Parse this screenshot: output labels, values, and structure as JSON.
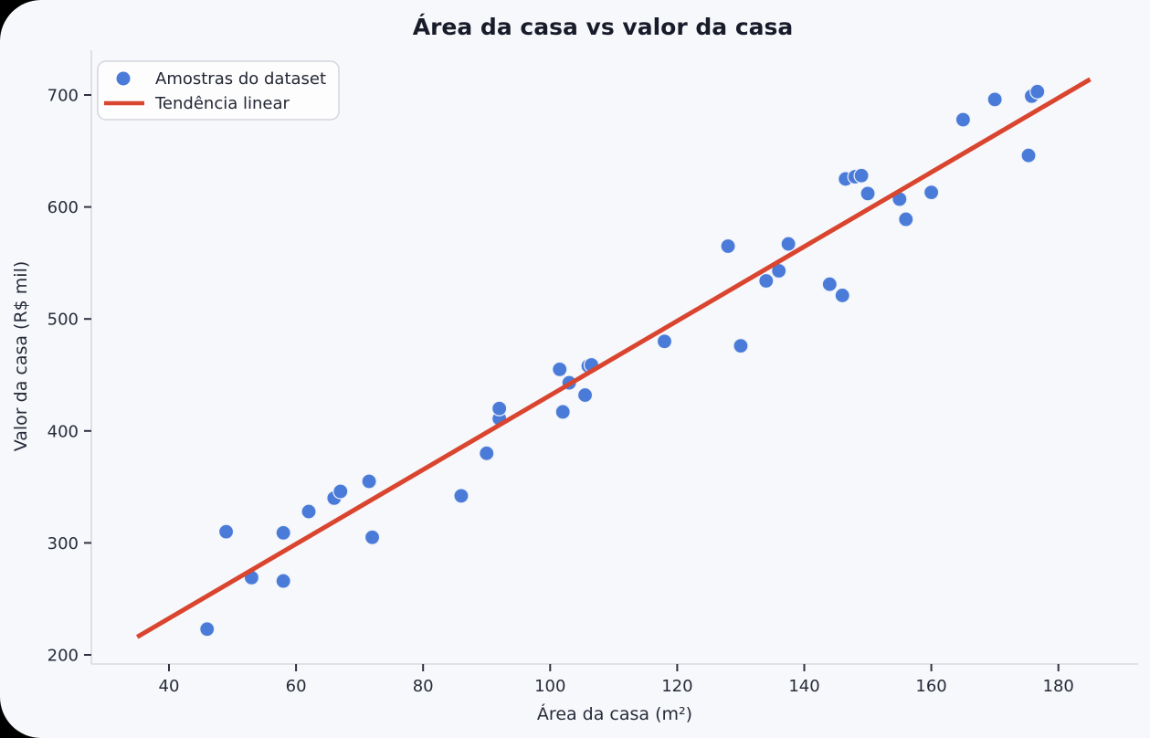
{
  "figure": {
    "background": "#f7f8fb",
    "outside_background": "#000000",
    "spine_color": "#d8dbe2",
    "tick_color": "#2f3340",
    "text_color": "#262b39"
  },
  "chart_data": {
    "type": "scatter",
    "title": "Área da casa vs valor da casa",
    "xlabel": "Área da casa (m²)",
    "ylabel": "Valor da casa (R$ mil)",
    "x_ticks": [
      40,
      60,
      80,
      100,
      120,
      140,
      160,
      180
    ],
    "y_ticks": [
      200,
      300,
      400,
      500,
      600,
      700
    ],
    "xlim": [
      28,
      193
    ],
    "ylim": [
      192,
      740
    ],
    "grid": false,
    "legend_position": "upper-left",
    "legend": {
      "items": [
        {
          "label": "Amostras do dataset",
          "marker": "dot",
          "color": "#4a7bd9"
        },
        {
          "label": "Tendência linear",
          "marker": "line",
          "color": "#d9452f"
        }
      ]
    },
    "series": [
      {
        "name": "Amostras do dataset",
        "type": "scatter",
        "color": "#4a7bd9",
        "marker_edge": "#eef2f9",
        "marker_radius": 8,
        "points": [
          [
            46,
            223
          ],
          [
            49,
            310
          ],
          [
            53,
            269
          ],
          [
            58,
            266
          ],
          [
            58,
            309
          ],
          [
            62,
            328
          ],
          [
            66,
            340
          ],
          [
            67,
            346
          ],
          [
            71.5,
            355
          ],
          [
            72,
            305
          ],
          [
            86,
            342
          ],
          [
            90,
            380
          ],
          [
            92,
            411
          ],
          [
            92,
            420
          ],
          [
            101.5,
            455
          ],
          [
            102,
            417
          ],
          [
            103,
            443
          ],
          [
            105.5,
            432
          ],
          [
            106,
            458
          ],
          [
            106.5,
            459
          ],
          [
            118,
            480
          ],
          [
            128,
            565
          ],
          [
            130,
            476
          ],
          [
            134,
            534
          ],
          [
            136,
            543
          ],
          [
            137.5,
            567
          ],
          [
            144,
            531
          ],
          [
            146,
            521
          ],
          [
            146.5,
            625
          ],
          [
            148,
            627
          ],
          [
            149,
            628
          ],
          [
            150,
            612
          ],
          [
            155,
            607
          ],
          [
            156,
            589
          ],
          [
            160,
            613
          ],
          [
            165,
            678
          ],
          [
            170,
            696
          ],
          [
            175.3,
            646
          ],
          [
            175.8,
            699
          ],
          [
            176.7,
            703
          ]
        ]
      },
      {
        "name": "Tendência linear",
        "type": "line",
        "color": "#d9452f",
        "width": 5,
        "points": [
          [
            35,
            216
          ],
          [
            185,
            714
          ]
        ]
      }
    ]
  }
}
